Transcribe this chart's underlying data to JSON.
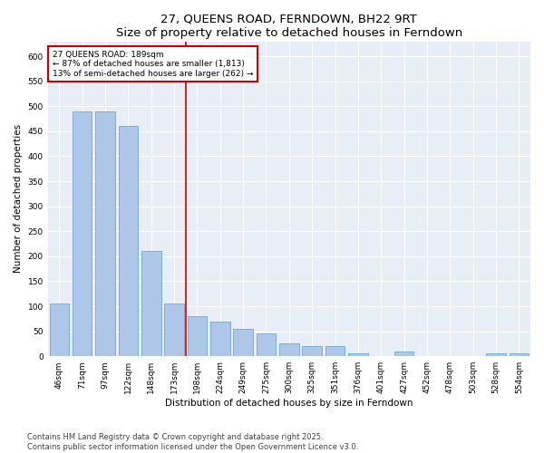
{
  "title": "27, QUEENS ROAD, FERNDOWN, BH22 9RT",
  "subtitle": "Size of property relative to detached houses in Ferndown",
  "xlabel": "Distribution of detached houses by size in Ferndown",
  "ylabel": "Number of detached properties",
  "categories": [
    "46sqm",
    "71sqm",
    "97sqm",
    "122sqm",
    "148sqm",
    "173sqm",
    "198sqm",
    "224sqm",
    "249sqm",
    "275sqm",
    "300sqm",
    "325sqm",
    "351sqm",
    "376sqm",
    "401sqm",
    "427sqm",
    "452sqm",
    "478sqm",
    "503sqm",
    "528sqm",
    "554sqm"
  ],
  "values": [
    105,
    490,
    490,
    460,
    210,
    105,
    80,
    70,
    55,
    45,
    25,
    20,
    20,
    5,
    0,
    10,
    0,
    0,
    0,
    5,
    5
  ],
  "bar_color": "#aec6e8",
  "bar_edge_color": "#5a9fd4",
  "vline_x_index": 6,
  "vline_color": "#cc0000",
  "annotation_text": "27 QUEENS ROAD: 189sqm\n← 87% of detached houses are smaller (1,813)\n13% of semi-detached houses are larger (262) →",
  "annotation_box_color": "#ffffff",
  "annotation_box_edge_color": "#cc0000",
  "ylim": [
    0,
    630
  ],
  "yticks": [
    0,
    50,
    100,
    150,
    200,
    250,
    300,
    350,
    400,
    450,
    500,
    550,
    600
  ],
  "background_color": "#e8eef5",
  "footer_text": "Contains HM Land Registry data © Crown copyright and database right 2025.\nContains public sector information licensed under the Open Government Licence v3.0.",
  "title_fontsize": 9.5,
  "subtitle_fontsize": 8.5,
  "axis_label_fontsize": 7.5,
  "tick_fontsize": 6.5,
  "annotation_fontsize": 6.5,
  "footer_fontsize": 6
}
